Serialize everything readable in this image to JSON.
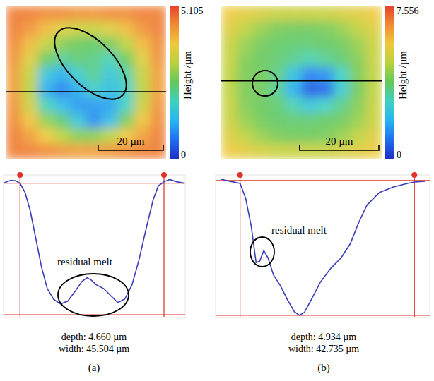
{
  "chart_data": [
    {
      "type": "heatmap",
      "x_extent": [
        0,
        49.3
      ],
      "y_extent": [
        0,
        47
      ],
      "cells": [
        [
          4.6,
          4.6,
          4.5,
          4.5,
          4.4,
          4.4,
          4.5,
          4.5,
          4.6,
          4.6
        ],
        [
          4.6,
          4.4,
          4.0,
          3.6,
          3.4,
          3.4,
          3.6,
          4.0,
          4.4,
          4.6
        ],
        [
          4.5,
          4.0,
          3.3,
          2.8,
          2.6,
          2.5,
          2.7,
          3.2,
          4.0,
          4.5
        ],
        [
          4.4,
          3.6,
          2.6,
          2.2,
          2.4,
          2.3,
          2.0,
          2.6,
          3.6,
          4.4
        ],
        [
          4.3,
          3.3,
          1.6,
          1.2,
          1.8,
          2.2,
          1.6,
          2.1,
          3.3,
          4.3
        ],
        [
          4.3,
          3.2,
          1.2,
          0.8,
          1.2,
          1.8,
          1.5,
          1.8,
          3.2,
          4.3
        ],
        [
          4.4,
          3.4,
          2.0,
          1.4,
          1.0,
          1.0,
          1.1,
          1.9,
          3.4,
          4.4
        ],
        [
          4.5,
          3.9,
          2.9,
          2.4,
          1.6,
          0.9,
          1.4,
          2.7,
          3.9,
          4.5
        ],
        [
          4.6,
          4.3,
          3.8,
          3.2,
          2.8,
          2.8,
          3.2,
          3.8,
          4.3,
          4.6
        ],
        [
          4.6,
          4.6,
          4.5,
          4.4,
          4.3,
          4.3,
          4.4,
          4.5,
          4.6,
          4.6
        ]
      ],
      "colorbar": {
        "range": [
          0,
          5.105
        ],
        "ticks": [
          0,
          5.105
        ],
        "label": "Height /µm"
      },
      "profile_y": 26.4,
      "scale_bar": {
        "length": 20,
        "label": "20 µm"
      }
    },
    {
      "type": "line",
      "x": [
        -5.2,
        -2.9,
        -1.4,
        0,
        1.6,
        3.2,
        5.0,
        6.8,
        8.6,
        10.6,
        12.8,
        15.1,
        17.3,
        19.6,
        21.2,
        22.5,
        24.1,
        26.4,
        28.6,
        30.9,
        33.1,
        35.4,
        37.6,
        39.9,
        42.1,
        43.7,
        45.5,
        47.3,
        49.5,
        51.8
      ],
      "values": [
        4.66,
        4.76,
        4.74,
        4.66,
        4.33,
        3.7,
        2.7,
        1.69,
        0.93,
        0.55,
        0.38,
        0.48,
        0.81,
        1.18,
        1.31,
        1.23,
        1.06,
        0.93,
        0.68,
        0.43,
        0.55,
        1.06,
        1.94,
        3.07,
        4.08,
        4.56,
        4.71,
        4.79,
        4.71,
        4.66
      ],
      "xlim": [
        -5.2,
        52.2
      ],
      "ylim": [
        -0.1,
        4.95
      ],
      "tick_labels": false,
      "color": "#3a3db8",
      "annotation": "residual melt",
      "depth": {
        "value": 4.66,
        "label": "depth: 4.660 µm"
      },
      "width": {
        "value": 45.504,
        "label": "width: 45.504 µm"
      },
      "panel_label": "(a)"
    },
    {
      "type": "heatmap",
      "x_extent": [
        0,
        40.5
      ],
      "y_extent": [
        0,
        38.8
      ],
      "cells": [
        [
          5.6,
          5.4,
          5.2,
          5.0,
          5.0,
          5.0,
          5.0,
          5.2,
          5.4,
          5.6
        ],
        [
          5.3,
          4.8,
          4.3,
          4.0,
          3.9,
          3.9,
          4.0,
          4.3,
          4.8,
          5.3
        ],
        [
          5.0,
          4.3,
          3.9,
          3.7,
          3.6,
          3.6,
          3.7,
          3.9,
          4.3,
          5.0
        ],
        [
          4.9,
          4.1,
          3.8,
          3.6,
          3.3,
          3.0,
          3.3,
          3.6,
          4.1,
          4.9
        ],
        [
          4.8,
          4.0,
          3.9,
          3.4,
          2.2,
          1.2,
          1.4,
          2.8,
          4.0,
          4.8
        ],
        [
          4.8,
          4.0,
          3.9,
          3.3,
          1.8,
          0.6,
          0.8,
          2.6,
          3.9,
          4.8
        ],
        [
          4.9,
          4.1,
          3.8,
          3.6,
          3.0,
          2.4,
          2.8,
          3.4,
          4.1,
          4.9
        ],
        [
          5.0,
          4.3,
          3.9,
          3.7,
          3.6,
          3.6,
          3.7,
          3.9,
          4.3,
          5.0
        ],
        [
          5.3,
          4.8,
          4.3,
          4.0,
          3.9,
          3.9,
          4.0,
          4.3,
          4.8,
          5.3
        ],
        [
          5.6,
          5.4,
          5.2,
          5.0,
          5.0,
          5.0,
          5.0,
          5.2,
          5.4,
          5.6
        ]
      ],
      "colorbar": {
        "range": [
          0,
          7.556
        ],
        "ticks": [
          0,
          7.556
        ],
        "label": "Height /µm"
      },
      "profile_y": 19.1,
      "scale_bar": {
        "length": 20,
        "label": "20 µm"
      }
    },
    {
      "type": "line",
      "x": [
        -4.79,
        -2.56,
        0,
        1.37,
        2.74,
        3.93,
        4.79,
        5.81,
        6.84,
        8.21,
        9.91,
        11.62,
        13.33,
        14.53,
        15.73,
        17.44,
        19.66,
        22.22,
        24.79,
        27.01,
        29.06,
        31.11,
        34.19,
        37.61,
        41.03,
        42.74,
        45.3
      ],
      "values": [
        4.99,
        4.91,
        4.83,
        4.29,
        3.26,
        1.93,
        1.98,
        2.37,
        2.11,
        1.47,
        1.08,
        0.57,
        0.13,
        0,
        0.1,
        0.57,
        1.21,
        1.72,
        2.11,
        2.62,
        3.39,
        4.04,
        4.5,
        4.7,
        4.83,
        4.88,
        4.91
      ],
      "xlim": [
        -6.0,
        46.5
      ],
      "ylim": [
        -0.08,
        5.14
      ],
      "tick_labels": false,
      "color": "#3a3db8",
      "annotation": "residual melt",
      "depth": {
        "value": 4.934,
        "label": "depth: 4.934 µm"
      },
      "width": {
        "value": 42.735,
        "label": "width: 42.735 µm"
      },
      "panel_label": "(b)"
    }
  ]
}
